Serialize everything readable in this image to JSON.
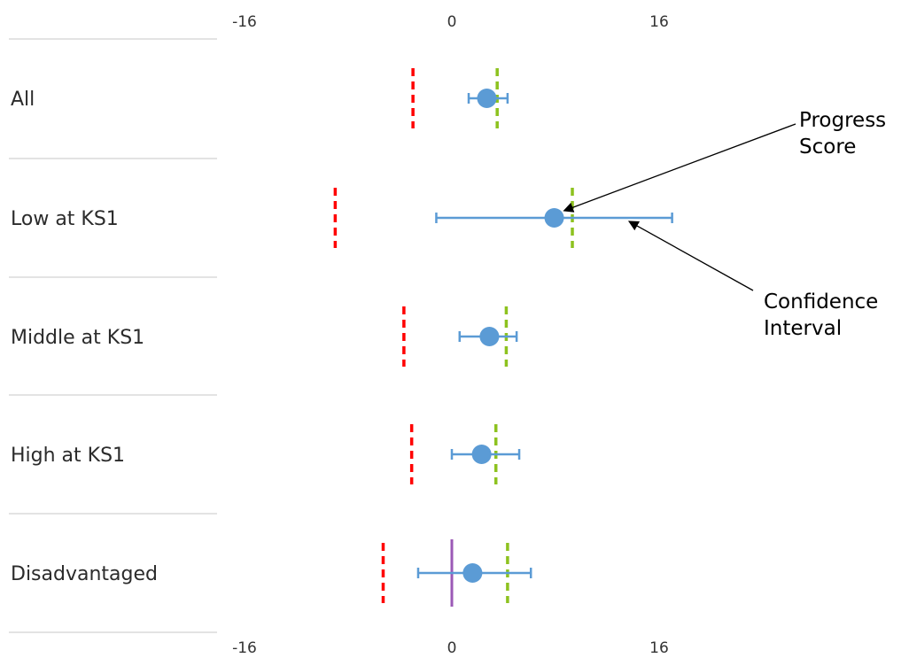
{
  "chart_data": {
    "type": "scatter",
    "title": "",
    "xlabel": "",
    "ylabel": "",
    "xlim": [
      -16,
      16
    ],
    "x_ticks": [
      -16,
      0,
      16
    ],
    "grid": false,
    "categories": [
      "All",
      "Low at KS1",
      "Middle at KS1",
      "High at KS1",
      "Disadvantaged"
    ],
    "rows": [
      {
        "category": "All",
        "score": 2.7,
        "ci_low": 1.3,
        "ci_high": 4.3,
        "red_line": -3.0,
        "green_line": 3.5
      },
      {
        "category": "Low at KS1",
        "score": 7.9,
        "ci_low": -1.2,
        "ci_high": 17.0,
        "red_line": -9.0,
        "green_line": 9.3
      },
      {
        "category": "Middle at KS1",
        "score": 2.9,
        "ci_low": 0.6,
        "ci_high": 5.0,
        "red_line": -3.7,
        "green_line": 4.2
      },
      {
        "category": "High at KS1",
        "score": 2.3,
        "ci_low": 0.0,
        "ci_high": 5.2,
        "red_line": -3.1,
        "green_line": 3.4
      },
      {
        "category": "Disadvantaged",
        "score": 1.6,
        "ci_low": -2.6,
        "ci_high": 6.1,
        "red_line": -5.3,
        "green_line": 4.3,
        "purple_line": 0.0
      }
    ],
    "annotations": [
      {
        "text": [
          "Progress",
          "Score"
        ],
        "points_to": "Low at KS1 score"
      },
      {
        "text": [
          "Confidence",
          "Interval"
        ],
        "points_to": "Low at KS1 confidence interval"
      }
    ],
    "colors": {
      "point": "#5b9bd5",
      "interval": "#5b9bd5",
      "red_line": "#ff0000",
      "green_line": "#8dc21f",
      "purple_line": "#9b59b6",
      "separator": "#e3e3e3"
    }
  }
}
